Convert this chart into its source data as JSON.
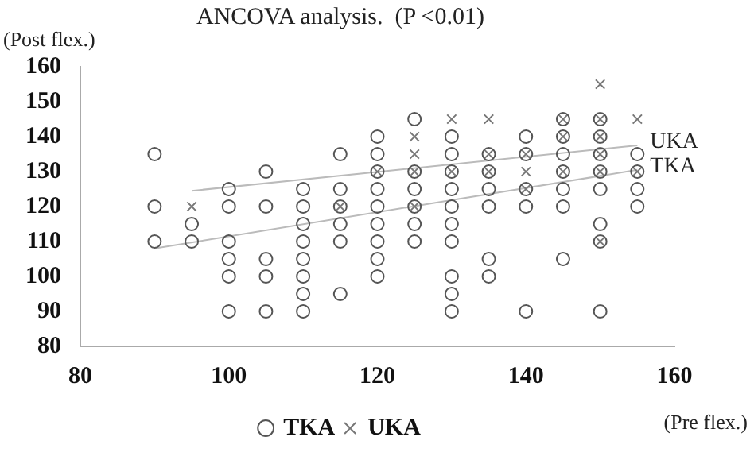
{
  "chart_data": {
    "type": "scatter",
    "title": "ANCOVA analysis.  (P <0.01)",
    "xlabel": "(Pre flex.)",
    "ylabel": "(Post flex.)",
    "xlim": [
      80,
      160
    ],
    "xticks": [
      80,
      100,
      120,
      140,
      160
    ],
    "ylim": [
      80,
      160
    ],
    "yticks": [
      80,
      90,
      100,
      110,
      120,
      130,
      140,
      150,
      160
    ],
    "grid": false,
    "legend": "bottom",
    "series": [
      {
        "name": "TKA",
        "type": "scatter",
        "marker": "circle",
        "color": "#555555",
        "x": [
          90,
          90,
          90,
          95,
          95,
          100,
          100,
          100,
          100,
          100,
          100,
          105,
          105,
          105,
          105,
          105,
          110,
          110,
          110,
          110,
          110,
          110,
          110,
          110,
          115,
          115,
          115,
          115,
          115,
          115,
          120,
          120,
          120,
          120,
          120,
          120,
          120,
          120,
          120,
          125,
          125,
          125,
          125,
          125,
          125,
          130,
          130,
          130,
          130,
          130,
          130,
          130,
          130,
          130,
          130,
          135,
          135,
          135,
          135,
          135,
          135,
          140,
          140,
          140,
          140,
          140,
          145,
          145,
          145,
          145,
          145,
          145,
          145,
          150,
          150,
          150,
          150,
          150,
          150,
          150,
          150,
          155,
          155,
          155,
          155
        ],
        "values": [
          135,
          120,
          110,
          115,
          110,
          125,
          120,
          110,
          105,
          100,
          90,
          130,
          120,
          105,
          100,
          90,
          125,
          120,
          115,
          110,
          105,
          100,
          95,
          90,
          135,
          125,
          120,
          115,
          110,
          95,
          140,
          135,
          130,
          125,
          120,
          115,
          110,
          105,
          100,
          145,
          130,
          125,
          120,
          115,
          110,
          140,
          135,
          130,
          125,
          120,
          115,
          110,
          100,
          95,
          90,
          135,
          130,
          125,
          120,
          105,
          100,
          140,
          135,
          125,
          120,
          90,
          145,
          140,
          135,
          130,
          125,
          120,
          105,
          145,
          140,
          135,
          130,
          125,
          115,
          110,
          90,
          135,
          130,
          125,
          120
        ]
      },
      {
        "name": "UKA",
        "type": "scatter",
        "marker": "cross",
        "color": "#777777",
        "x": [
          95,
          115,
          120,
          125,
          125,
          125,
          125,
          130,
          130,
          135,
          135,
          135,
          140,
          140,
          140,
          145,
          145,
          145,
          150,
          150,
          150,
          150,
          150,
          150,
          155,
          155
        ],
        "values": [
          120,
          120,
          130,
          140,
          135,
          130,
          120,
          145,
          130,
          145,
          135,
          130,
          135,
          130,
          125,
          145,
          140,
          130,
          155,
          145,
          140,
          135,
          130,
          110,
          145,
          130
        ]
      },
      {
        "name": "UKA",
        "type": "line",
        "marker": "none",
        "color": "#bbbbbb",
        "x": [
          95,
          155
        ],
        "values": [
          124.5,
          137.5
        ]
      },
      {
        "name": "TKA",
        "type": "line",
        "marker": "none",
        "color": "#bbbbbb",
        "x": [
          90,
          155
        ],
        "values": [
          108,
          130.5
        ]
      }
    ]
  }
}
